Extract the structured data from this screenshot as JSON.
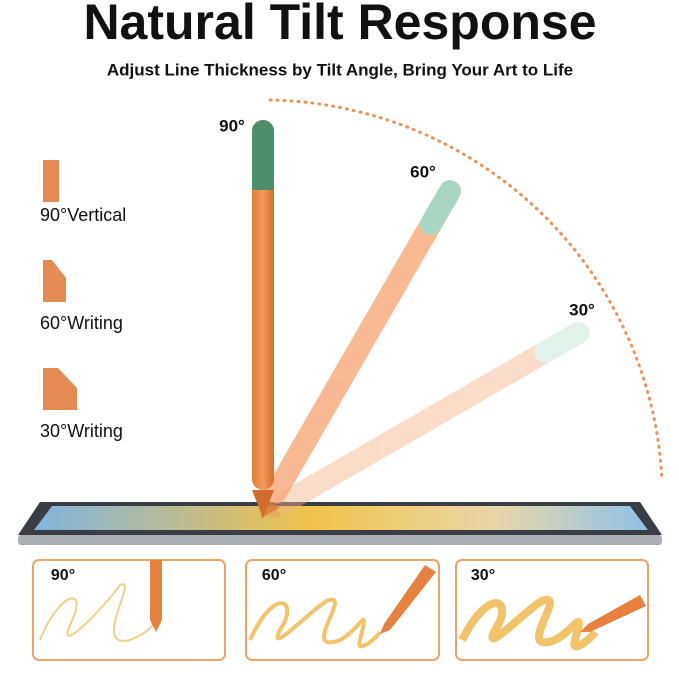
{
  "header": {
    "title": "Natural Tilt Response",
    "subtitle": "Adjust Line Thickness by Tilt Angle, Bring Your Art to Life"
  },
  "angles": [
    "90°",
    "60°",
    "30°"
  ],
  "legend": [
    "90°Vertical",
    "60°Writing",
    "30°Writing"
  ],
  "panels": [
    "90°",
    "60°",
    "30°"
  ]
}
